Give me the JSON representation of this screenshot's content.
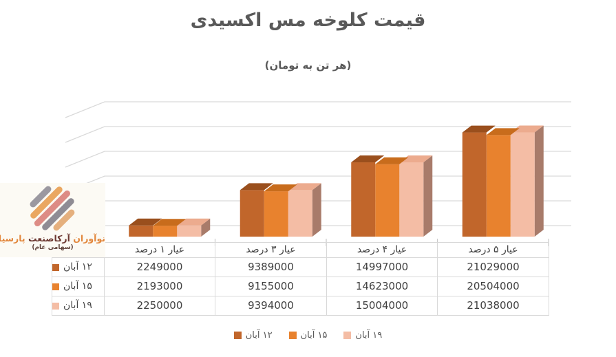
{
  "title": "قیمت کلوخه مس اکسیدی",
  "subtitle": "(هر تن به تومان)",
  "logo": {
    "name_word1": "نوآوران",
    "name_word2": "آرکاصنعت",
    "name_word3": "پارسیان",
    "subtext": "(سهامی عام)",
    "accent_color": "#E2863B",
    "dark_color": "#6C3831",
    "emblem_colors": [
      "#9B98A0",
      "#EAA761",
      "#DD8C85",
      "#8F8C94",
      "#E5B07E"
    ]
  },
  "chart_data": {
    "type": "bar",
    "style": "3d-clustered-column",
    "direction": "rtl",
    "title": "قیمت کلوخه مس اکسیدی",
    "unit_note": "(هر تن به تومان)",
    "categories": [
      "عیار ١ درصد",
      "عیار ٣ درصد",
      "عیار ۴ درصد",
      "عیار ۵ درصد"
    ],
    "series": [
      {
        "name": "١٢ آبان",
        "color": "#C1662B",
        "top_color": "#9A4F1D",
        "side_color": "#8A4518",
        "values": [
          2249000,
          9389000,
          14997000,
          21029000
        ]
      },
      {
        "name": "١۵ آبان",
        "color": "#E8822E",
        "top_color": "#C86C1C",
        "side_color": "#B65F18",
        "values": [
          2193000,
          9155000,
          14623000,
          20504000
        ]
      },
      {
        "name": "١٩ آبان",
        "color": "#F4BDA5",
        "top_color": "#ECAB8E",
        "side_color": "#A87B6A",
        "values": [
          2250000,
          9394000,
          15004000,
          21038000
        ]
      }
    ],
    "ylim": [
      0,
      25000000
    ],
    "gridline_step": 5000000,
    "grid": true,
    "y_axis_labels_visible": false,
    "legend_position": "bottom",
    "data_table_shown": true,
    "gridline_color": "#D9D9D9",
    "tick_color": "#C9C9C9"
  }
}
